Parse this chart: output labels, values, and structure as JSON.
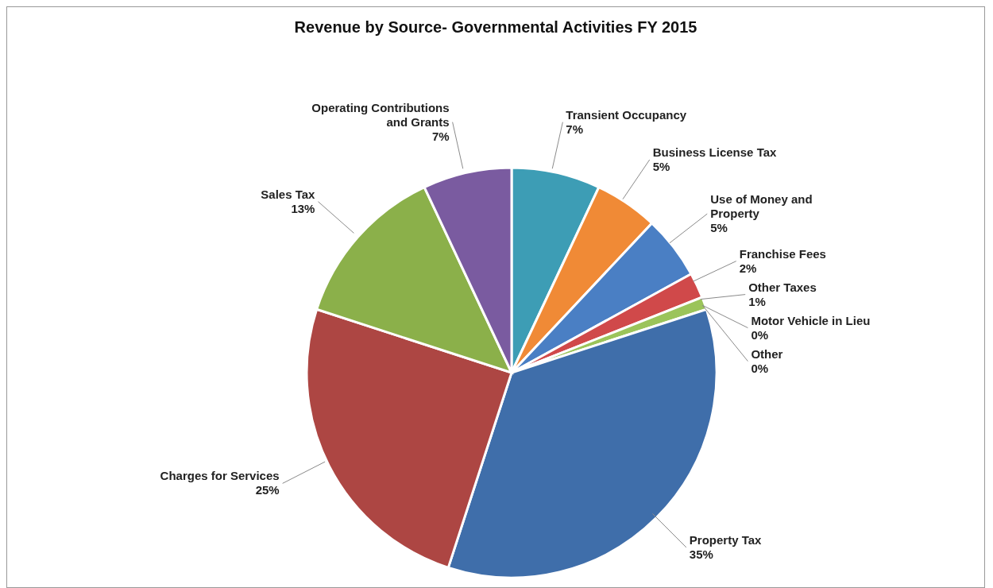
{
  "chart_data": {
    "type": "pie",
    "title": "Revenue by Source- Governmental Activities FY 2015",
    "categories": [
      "Transient Occupancy",
      "Business License Tax",
      "Use of Money and Property",
      "Franchise Fees",
      "Other Taxes",
      "Motor Vehicle in Lieu",
      "Other",
      "Property Tax",
      "Charges for Services",
      "Sales Tax",
      "Operating Contributions and Grants"
    ],
    "values": [
      7,
      5,
      5,
      2,
      1,
      0,
      0,
      35,
      25,
      13,
      7
    ],
    "value_labels": [
      "7%",
      "5%",
      "5%",
      "2%",
      "1%",
      "0%",
      "0%",
      "35%",
      "25%",
      "13%",
      "7%"
    ],
    "colors": [
      "#3d9db5",
      "#f08a36",
      "#4a7fc4",
      "#d0494a",
      "#9bc45a",
      "#7a9acb",
      "#c9c9c9",
      "#3f6eaa",
      "#ad4643",
      "#8bb04a",
      "#7a5ba0"
    ]
  }
}
